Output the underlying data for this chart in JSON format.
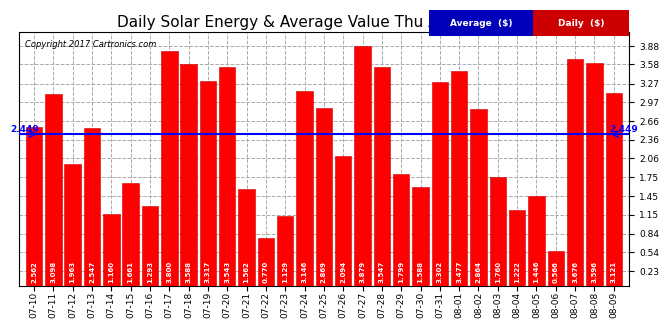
{
  "title": "Daily Solar Energy & Average Value Thu Aug 10 19:58",
  "copyright": "Copyright 2017 Cartronics.com",
  "average_value": 2.449,
  "average_label": "2.449",
  "categories": [
    "07-10",
    "07-11",
    "07-12",
    "07-13",
    "07-14",
    "07-15",
    "07-16",
    "07-17",
    "07-18",
    "07-19",
    "07-20",
    "07-21",
    "07-22",
    "07-23",
    "07-24",
    "07-25",
    "07-26",
    "07-27",
    "07-28",
    "07-29",
    "07-30",
    "07-31",
    "08-01",
    "08-02",
    "08-03",
    "08-04",
    "08-05",
    "08-06",
    "08-07",
    "08-08",
    "08-09"
  ],
  "values": [
    2.562,
    3.098,
    1.963,
    2.547,
    1.16,
    1.661,
    1.293,
    3.8,
    3.588,
    3.317,
    3.543,
    1.562,
    0.77,
    1.129,
    3.146,
    2.869,
    2.094,
    3.879,
    3.547,
    1.799,
    1.588,
    3.302,
    3.477,
    2.864,
    1.76,
    1.222,
    1.446,
    0.566,
    3.676,
    3.596,
    3.121
  ],
  "bar_color": "#ff0000",
  "bar_edge_color": "#cc0000",
  "average_line_color": "#0000ff",
  "bg_color": "#ffffff",
  "plot_bg_color": "#ffffff",
  "grid_color": "#aaaaaa",
  "title_fontsize": 11,
  "tick_fontsize": 6.5,
  "ylim_min": 0.0,
  "ylim_max": 4.1,
  "yticks": [
    0.23,
    0.54,
    0.84,
    1.15,
    1.45,
    1.75,
    2.06,
    2.36,
    2.66,
    2.97,
    3.27,
    3.58,
    3.88
  ],
  "legend_avg_color": "#0000ff",
  "legend_daily_color": "#ff0000",
  "legend_bg_blue": "#0000cc",
  "legend_bg_red": "#cc0000"
}
